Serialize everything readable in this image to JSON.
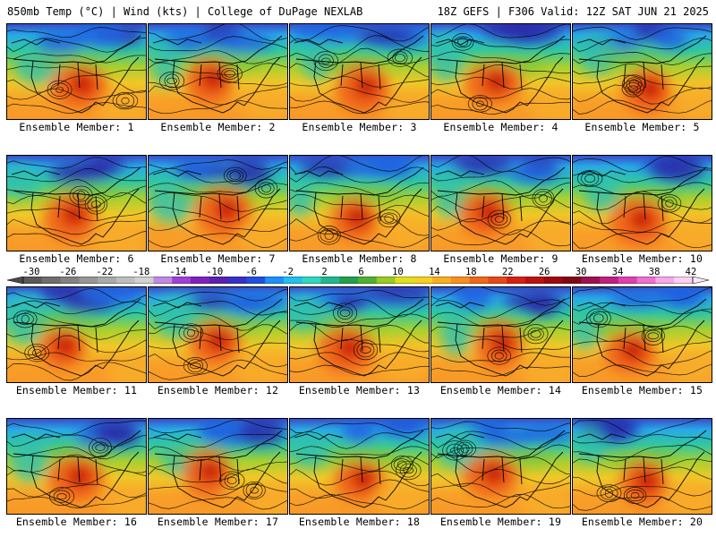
{
  "header": {
    "left_title": "850mb Temp (°C) | Wind (kts) | College of DuPage NEXLAB",
    "right_title": "18Z GEFS | F306 Valid: 12Z SAT JUN 21 2025"
  },
  "panels": [
    {
      "label": "Ensemble Member: 1"
    },
    {
      "label": "Ensemble Member: 2"
    },
    {
      "label": "Ensemble Member: 3"
    },
    {
      "label": "Ensemble Member: 4"
    },
    {
      "label": "Ensemble Member: 5"
    },
    {
      "label": "Ensemble Member: 6"
    },
    {
      "label": "Ensemble Member: 7"
    },
    {
      "label": "Ensemble Member: 8"
    },
    {
      "label": "Ensemble Member: 9"
    },
    {
      "label": "Ensemble Member: 10"
    },
    {
      "label": "Ensemble Member: 11"
    },
    {
      "label": "Ensemble Member: 12"
    },
    {
      "label": "Ensemble Member: 13"
    },
    {
      "label": "Ensemble Member: 14"
    },
    {
      "label": "Ensemble Member: 15"
    },
    {
      "label": "Ensemble Member: 16"
    },
    {
      "label": "Ensemble Member: 17"
    },
    {
      "label": "Ensemble Member: 18"
    },
    {
      "label": "Ensemble Member: 19"
    },
    {
      "label": "Ensemble Member: 20"
    }
  ],
  "colorbar": {
    "ticks": [
      "-30",
      "-26",
      "-22",
      "-18",
      "-14",
      "-10",
      "-6",
      "-2",
      "2",
      "6",
      "10",
      "14",
      "18",
      "22",
      "26",
      "30",
      "34",
      "38",
      "42"
    ],
    "colors": [
      "#5a5a5a",
      "#6e6e6e",
      "#828282",
      "#969696",
      "#aaaaaa",
      "#bebebe",
      "#d2d2d2",
      "#c08ae0",
      "#a040d8",
      "#8020c0",
      "#5a20b0",
      "#3a30c8",
      "#2050e0",
      "#1e90ff",
      "#20c0f0",
      "#30d8c0",
      "#20b890",
      "#20a050",
      "#50b030",
      "#98cc20",
      "#e0e020",
      "#f8d020",
      "#f8b020",
      "#f89020",
      "#f06818",
      "#e84818",
      "#d82010",
      "#c01010",
      "#a00810",
      "#800818",
      "#a01050",
      "#c02080",
      "#e040b0",
      "#f070d0",
      "#f8a8e8",
      "#fcd0f0"
    ]
  }
}
